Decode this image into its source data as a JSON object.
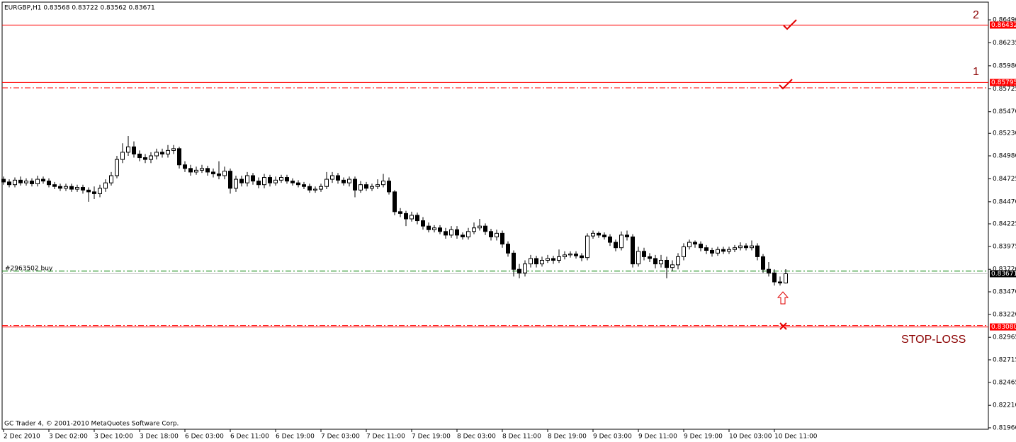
{
  "chart_data": {
    "type": "candlestick",
    "title": "EURGBP,H1  0.83568 0.83722 0.83562 0.83671",
    "footer": "GC Trader 4, © 2001-2010 MetaQuotes Software Corp.",
    "order_label": "#2963502 buy",
    "target_2": "2",
    "target_1": "1",
    "stop_label": "STOP-LOSS",
    "up_color": "#ffffff",
    "down_color": "#000000",
    "categories": [
      "2 Dec 2010",
      null,
      null,
      null,
      null,
      null,
      null,
      null,
      "3 Dec 02:00",
      null,
      null,
      null,
      null,
      null,
      null,
      null,
      "3 Dec 10:00",
      null,
      null,
      null,
      null,
      null,
      null,
      null,
      "3 Dec 18:00",
      null,
      null,
      null,
      null,
      null,
      null,
      null,
      "6 Dec 03:00",
      null,
      null,
      null,
      null,
      null,
      null,
      null,
      "6 Dec 11:00",
      null,
      null,
      null,
      null,
      null,
      null,
      null,
      "6 Dec 19:00",
      null,
      null,
      null,
      null,
      null,
      null,
      null,
      "7 Dec 03:00",
      null,
      null,
      null,
      null,
      null,
      null,
      null,
      "7 Dec 11:00",
      null,
      null,
      null,
      null,
      null,
      null,
      null,
      "7 Dec 19:00",
      null,
      null,
      null,
      null,
      null,
      null,
      null,
      "8 Dec 03:00",
      null,
      null,
      null,
      null,
      null,
      null,
      null,
      "8 Dec 11:00",
      null,
      null,
      null,
      null,
      null,
      null,
      null,
      "8 Dec 19:00",
      null,
      null,
      null,
      null,
      null,
      null,
      null,
      "9 Dec 03:00",
      null,
      null,
      null,
      null,
      null,
      null,
      null,
      "9 Dec 11:00",
      null,
      null,
      null,
      null,
      null,
      null,
      null,
      "9 Dec 19:00",
      null,
      null,
      null,
      null,
      null,
      null,
      null,
      "10 Dec 03:00",
      null,
      null,
      null,
      null,
      null,
      null,
      null,
      "10 Dec 11:00",
      null,
      null
    ],
    "open": [
      0.8472,
      0.8469,
      0.8466,
      0.8471,
      0.8468,
      0.847,
      0.8467,
      0.8472,
      0.847,
      0.8466,
      0.8464,
      0.8462,
      0.8464,
      0.8461,
      0.8463,
      0.846,
      0.8458,
      0.8456,
      0.8462,
      0.8468,
      0.8476,
      0.8494,
      0.8502,
      0.8508,
      0.85,
      0.8496,
      0.8494,
      0.8498,
      0.8502,
      0.85,
      0.8504,
      0.8506,
      0.8488,
      0.8484,
      0.848,
      0.8482,
      0.8484,
      0.848,
      0.8478,
      0.8476,
      0.8481,
      0.8462,
      0.8472,
      0.8468,
      0.8476,
      0.847,
      0.8466,
      0.8474,
      0.8468,
      0.8471,
      0.8474,
      0.847,
      0.8468,
      0.8466,
      0.8464,
      0.846,
      0.8461,
      0.8464,
      0.8472,
      0.8476,
      0.8471,
      0.8468,
      0.8472,
      0.846,
      0.8466,
      0.8462,
      0.8464,
      0.8466,
      0.847,
      0.8458,
      0.8436,
      0.8434,
      0.8428,
      0.8432,
      0.8426,
      0.842,
      0.8416,
      0.8418,
      0.8414,
      0.841,
      0.8416,
      0.841,
      0.8408,
      0.8414,
      0.8418,
      0.842,
      0.8414,
      0.8408,
      0.8412,
      0.84,
      0.839,
      0.8372,
      0.8368,
      0.8378,
      0.8384,
      0.8378,
      0.8382,
      0.8384,
      0.8382,
      0.8386,
      0.8388,
      0.8389,
      0.8387,
      0.8385,
      0.8409,
      0.8412,
      0.841,
      0.8408,
      0.8402,
      0.8396,
      0.841,
      0.8408,
      0.8378,
      0.8392,
      0.8386,
      0.8384,
      0.8378,
      0.8382,
      0.8374,
      0.8377,
      0.8386,
      0.8397,
      0.8402,
      0.84,
      0.8396,
      0.8393,
      0.839,
      0.8394,
      0.8392,
      0.8394,
      0.8396,
      0.8398,
      0.8396,
      0.8398,
      0.8386,
      0.8372,
      0.8368,
      0.8358,
      0.83568
    ],
    "high": [
      0.8475,
      0.8472,
      0.8474,
      0.8475,
      0.8473,
      0.8473,
      0.8476,
      0.8475,
      0.8473,
      0.8469,
      0.8467,
      0.8467,
      0.8467,
      0.8466,
      0.8466,
      0.8463,
      0.8464,
      0.8466,
      0.8472,
      0.848,
      0.8498,
      0.8512,
      0.852,
      0.8514,
      0.8504,
      0.85,
      0.8502,
      0.8506,
      0.8506,
      0.851,
      0.851,
      0.8508,
      0.8492,
      0.8488,
      0.8486,
      0.8488,
      0.8487,
      0.8484,
      0.8492,
      0.8486,
      0.8484,
      0.8476,
      0.8476,
      0.848,
      0.8479,
      0.8474,
      0.8478,
      0.8477,
      0.8475,
      0.8477,
      0.8477,
      0.8473,
      0.8471,
      0.8469,
      0.8467,
      0.8464,
      0.8467,
      0.848,
      0.848,
      0.8479,
      0.8474,
      0.8475,
      0.8475,
      0.847,
      0.8469,
      0.8467,
      0.8472,
      0.8478,
      0.8474,
      0.846,
      0.844,
      0.8437,
      0.8436,
      0.8435,
      0.843,
      0.8424,
      0.8421,
      0.8421,
      0.8418,
      0.842,
      0.842,
      0.8413,
      0.8418,
      0.8424,
      0.8428,
      0.8423,
      0.8417,
      0.8416,
      0.8415,
      0.8403,
      0.8393,
      0.8378,
      0.8382,
      0.8388,
      0.8387,
      0.8386,
      0.8388,
      0.8387,
      0.8394,
      0.8392,
      0.8392,
      0.8392,
      0.839,
      0.8412,
      0.8415,
      0.8414,
      0.8413,
      0.8411,
      0.8405,
      0.8414,
      0.8415,
      0.8411,
      0.8397,
      0.8396,
      0.839,
      0.8388,
      0.8388,
      0.8386,
      0.8382,
      0.839,
      0.8401,
      0.8405,
      0.8404,
      0.8403,
      0.8399,
      0.8396,
      0.8397,
      0.8397,
      0.8397,
      0.8399,
      0.8402,
      0.8401,
      0.8404,
      0.8401,
      0.8389,
      0.838,
      0.8372,
      0.8364,
      0.83722
    ],
    "low": [
      0.8466,
      0.8463,
      0.8463,
      0.8465,
      0.8465,
      0.8464,
      0.8464,
      0.8467,
      0.8463,
      0.8461,
      0.8459,
      0.8459,
      0.8458,
      0.8458,
      0.8456,
      0.8447,
      0.845,
      0.8452,
      0.8458,
      0.8465,
      0.8473,
      0.849,
      0.8498,
      0.8496,
      0.8492,
      0.849,
      0.849,
      0.8494,
      0.8496,
      0.8496,
      0.85,
      0.8484,
      0.848,
      0.8476,
      0.8477,
      0.8479,
      0.8476,
      0.8474,
      0.8472,
      0.8472,
      0.8456,
      0.8458,
      0.8464,
      0.8464,
      0.8466,
      0.8462,
      0.8462,
      0.8464,
      0.8465,
      0.8468,
      0.8467,
      0.8465,
      0.8463,
      0.8461,
      0.8457,
      0.8457,
      0.8458,
      0.8461,
      0.8468,
      0.8467,
      0.8465,
      0.8464,
      0.8452,
      0.8457,
      0.8459,
      0.8459,
      0.8461,
      0.8463,
      0.8455,
      0.8432,
      0.843,
      0.842,
      0.8425,
      0.8422,
      0.8416,
      0.8413,
      0.8413,
      0.8411,
      0.8406,
      0.8407,
      0.8406,
      0.8405,
      0.8405,
      0.8411,
      0.8415,
      0.841,
      0.8404,
      0.8404,
      0.8396,
      0.8386,
      0.8364,
      0.8362,
      0.8364,
      0.8374,
      0.8374,
      0.8375,
      0.8379,
      0.8378,
      0.8379,
      0.8383,
      0.8385,
      0.8384,
      0.8381,
      0.8382,
      0.8406,
      0.8407,
      0.8405,
      0.8398,
      0.8392,
      0.8393,
      0.8404,
      0.8374,
      0.8375,
      0.8382,
      0.838,
      0.8373,
      0.8374,
      0.8362,
      0.837,
      0.8372,
      0.8382,
      0.8394,
      0.8396,
      0.8392,
      0.8389,
      0.8386,
      0.8387,
      0.8389,
      0.8389,
      0.8391,
      0.8393,
      0.8393,
      0.8393,
      0.8382,
      0.8368,
      0.8364,
      0.8354,
      0.8354,
      0.83562
    ],
    "close": [
      0.8469,
      0.8466,
      0.8471,
      0.8468,
      0.847,
      0.8467,
      0.8472,
      0.847,
      0.8466,
      0.8464,
      0.8462,
      0.8464,
      0.8461,
      0.8463,
      0.846,
      0.8458,
      0.8456,
      0.8462,
      0.8468,
      0.8476,
      0.8494,
      0.8502,
      0.8508,
      0.85,
      0.8496,
      0.8494,
      0.8498,
      0.8502,
      0.85,
      0.8504,
      0.8506,
      0.8488,
      0.8484,
      0.848,
      0.8482,
      0.8484,
      0.848,
      0.8478,
      0.8476,
      0.8481,
      0.8462,
      0.8472,
      0.8468,
      0.8476,
      0.847,
      0.8466,
      0.8474,
      0.8468,
      0.8471,
      0.8474,
      0.847,
      0.8468,
      0.8466,
      0.8464,
      0.846,
      0.8461,
      0.8464,
      0.8472,
      0.8476,
      0.8471,
      0.8468,
      0.8472,
      0.846,
      0.8466,
      0.8462,
      0.8464,
      0.8466,
      0.847,
      0.8458,
      0.8436,
      0.8434,
      0.8428,
      0.8432,
      0.8426,
      0.842,
      0.8416,
      0.8418,
      0.8414,
      0.841,
      0.8416,
      0.841,
      0.8408,
      0.8414,
      0.8418,
      0.842,
      0.8414,
      0.8408,
      0.8412,
      0.84,
      0.839,
      0.8372,
      0.8368,
      0.8378,
      0.8384,
      0.8378,
      0.8382,
      0.8384,
      0.8382,
      0.8386,
      0.8388,
      0.8389,
      0.8387,
      0.8385,
      0.8409,
      0.8412,
      0.841,
      0.8408,
      0.8402,
      0.8396,
      0.841,
      0.8408,
      0.8378,
      0.8392,
      0.8386,
      0.8384,
      0.8378,
      0.8382,
      0.8374,
      0.8377,
      0.8386,
      0.8397,
      0.8402,
      0.84,
      0.8396,
      0.8393,
      0.839,
      0.8394,
      0.8392,
      0.8394,
      0.8396,
      0.8398,
      0.8396,
      0.8398,
      0.8386,
      0.8372,
      0.8368,
      0.8358,
      0.83568,
      0.83671
    ],
    "ylim": [
      0.81944,
      0.86687
    ],
    "yticks": [
      {
        "value": 0.8649,
        "label": "0.86490"
      },
      {
        "value": 0.86235,
        "label": "0.86235"
      },
      {
        "value": 0.8598,
        "label": "0.85980"
      },
      {
        "value": 0.85725,
        "label": "0.85725"
      },
      {
        "value": 0.8547,
        "label": "0.85470"
      },
      {
        "value": 0.8523,
        "label": "0.85230"
      },
      {
        "value": 0.8498,
        "label": "0.84980"
      },
      {
        "value": 0.84725,
        "label": "0.84725"
      },
      {
        "value": 0.8447,
        "label": "0.84470"
      },
      {
        "value": 0.84225,
        "label": "0.84225"
      },
      {
        "value": 0.83975,
        "label": "0.83975"
      },
      {
        "value": 0.8372,
        "label": "0.83720"
      },
      {
        "value": 0.8347,
        "label": "0.83470"
      },
      {
        "value": 0.8322,
        "label": "0.83220"
      },
      {
        "value": 0.82965,
        "label": "0.82965"
      },
      {
        "value": 0.82715,
        "label": "0.82715"
      },
      {
        "value": 0.82465,
        "label": "0.82465"
      },
      {
        "value": 0.8221,
        "label": "0.82210"
      },
      {
        "value": 0.8196,
        "label": "0.81960"
      }
    ],
    "levels": [
      {
        "value": 0.86432,
        "label": "0.86432",
        "color": "#ff0000",
        "dash": false,
        "tag_color": "#ff0000"
      },
      {
        "value": 0.85795,
        "label": "0.85795",
        "color": "#ff0000",
        "dash": false,
        "tag_color": "#ff0000"
      },
      {
        "value": 0.85735,
        "color": "#ff0000",
        "dash": true
      },
      {
        "value": 0.837,
        "color": "#008000",
        "dash": true
      },
      {
        "value": 0.83671,
        "label": "0.83671",
        "color": "#c0c0c0",
        "dash": false,
        "tag_color": "#000000"
      },
      {
        "value": 0.83095,
        "color": "#ff0000",
        "dash": true
      },
      {
        "value": 0.8308,
        "label": "0.83080",
        "color": "#ff0000",
        "dash": false,
        "tag_color": "#ff0000"
      }
    ]
  }
}
